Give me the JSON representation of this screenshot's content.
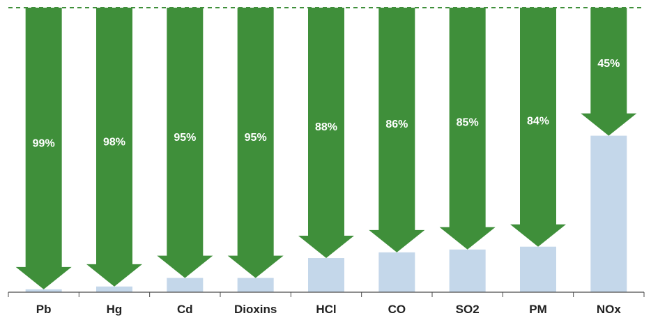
{
  "colors": {
    "arrow": "#3f8f3a",
    "remaining_bar": "#c4d7ea",
    "baseline": "#4a4a4a",
    "reference_line": "#3f8f3a"
  },
  "chart_data": {
    "type": "bar",
    "title": "",
    "xlabel": "",
    "ylabel": "",
    "ylim": [
      0,
      100
    ],
    "categories": [
      "Pb",
      "Hg",
      "Cd",
      "Dioxins",
      "HCl",
      "CO",
      "SO2",
      "PM",
      "NOx"
    ],
    "series": [
      {
        "values": [
          99,
          98,
          95,
          95,
          88,
          86,
          85,
          84,
          45
        ]
      },
      {
        "values": [
          1,
          2,
          5,
          5,
          12,
          14,
          15,
          16,
          55
        ]
      }
    ],
    "labels": [
      "99%",
      "98%",
      "95%",
      "95%",
      "88%",
      "86%",
      "85%",
      "84%",
      "45%"
    ],
    "reference_line": "dashed at 100%",
    "grid": false,
    "legend": "none"
  }
}
